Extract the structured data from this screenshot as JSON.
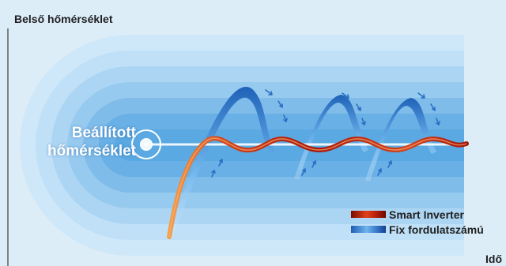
{
  "chart_data": {
    "type": "line",
    "ylabel": "Belső hőmérséklet",
    "xlabel": "Idő",
    "setpoint_label_line1": "Beállított",
    "setpoint_label_line2": "hőmérséklet",
    "series": [
      {
        "name": "Smart Inverter",
        "description": "small oscillation around the setpoint"
      },
      {
        "name": "Fix fordulatszámú",
        "description": "large overshoot / undershoot cycles"
      }
    ],
    "grid": false,
    "legend_position": "bottom-right"
  },
  "colors": {
    "background": "#dcedf8",
    "band_light": "#cfe8f9",
    "band_dark": "#5aa9e2",
    "smart_inverter": "#c8321a",
    "fixed_speed": "#2f7fd1",
    "axis": "#555555"
  }
}
